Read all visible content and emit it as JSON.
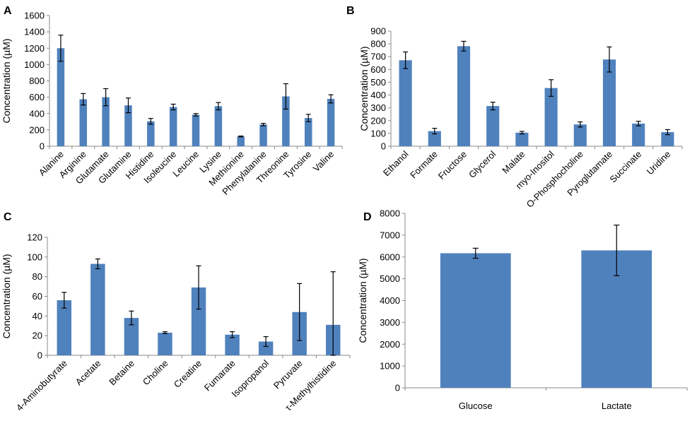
{
  "colors": {
    "bar": "#4F81BD",
    "error_bar": "#000000",
    "axis": "#888888",
    "background": "#ffffff"
  },
  "chart_data": [
    {
      "panel": "A",
      "type": "bar",
      "categories": [
        "Alanine",
        "Arginine",
        "Glutamate",
        "Glutamine",
        "Histidine",
        "Isoleucine",
        "Leucine",
        "Lysine",
        "Methionine",
        "Phenylalanine",
        "Threonine",
        "Tyrosine",
        "Valine"
      ],
      "values": [
        1200,
        575,
        600,
        500,
        305,
        480,
        385,
        490,
        120,
        265,
        610,
        345,
        580
      ],
      "errors": [
        160,
        70,
        105,
        90,
        35,
        35,
        15,
        45,
        5,
        15,
        155,
        45,
        50
      ],
      "ylabel": "Concentration (µM)",
      "ylim": [
        0,
        1600
      ],
      "yticks": [
        "0",
        "200",
        "400",
        "600",
        "800",
        "1000",
        "1200",
        "1400",
        "1600"
      ],
      "tick_rotation": -45
    },
    {
      "panel": "B",
      "type": "bar",
      "categories": [
        "Ethanol",
        "Formate",
        "Fructose",
        "Glycerol",
        "Malate",
        "myo-Inositol",
        "O-Phosphocholine",
        "Pyroglutamate",
        "Succinate",
        "Uridine"
      ],
      "values": [
        672,
        118,
        782,
        314,
        106,
        455,
        170,
        678,
        177,
        110
      ],
      "errors": [
        65,
        22,
        38,
        30,
        10,
        65,
        20,
        98,
        18,
        20
      ],
      "ylabel": "Concentration (µM)",
      "ylim": [
        0,
        900
      ],
      "yticks": [
        "0",
        "100",
        "200",
        "300",
        "400",
        "500",
        "600",
        "700",
        "800",
        "900"
      ],
      "tick_rotation": -45
    },
    {
      "panel": "C",
      "type": "bar",
      "categories": [
        "4-Aminobutyrate",
        "Acetate",
        "Betaine",
        "Choline",
        "Creatine",
        "Fumarate",
        "Isopropanol",
        "Pyruvate",
        "τ-Methylhistidine"
      ],
      "values": [
        56,
        93,
        38,
        23,
        69,
        21,
        14,
        44,
        31
      ],
      "errors": [
        8,
        5,
        7,
        1,
        22,
        3,
        5,
        29,
        54
      ],
      "ylabel": "Concentration (µM)",
      "ylim": [
        0,
        120
      ],
      "yticks": [
        "0",
        "20",
        "40",
        "60",
        "80",
        "100",
        "120"
      ],
      "tick_rotation": -45
    },
    {
      "panel": "D",
      "type": "bar",
      "categories": [
        "Glucose",
        "Lactate"
      ],
      "values": [
        6170,
        6300
      ],
      "errors": [
        230,
        1160
      ],
      "ylabel": "Concentration (µM)",
      "ylim": [
        0,
        8000
      ],
      "yticks": [
        "0",
        "1000",
        "2000",
        "3000",
        "4000",
        "5000",
        "6000",
        "7000",
        "8000"
      ],
      "tick_rotation": 0
    }
  ]
}
